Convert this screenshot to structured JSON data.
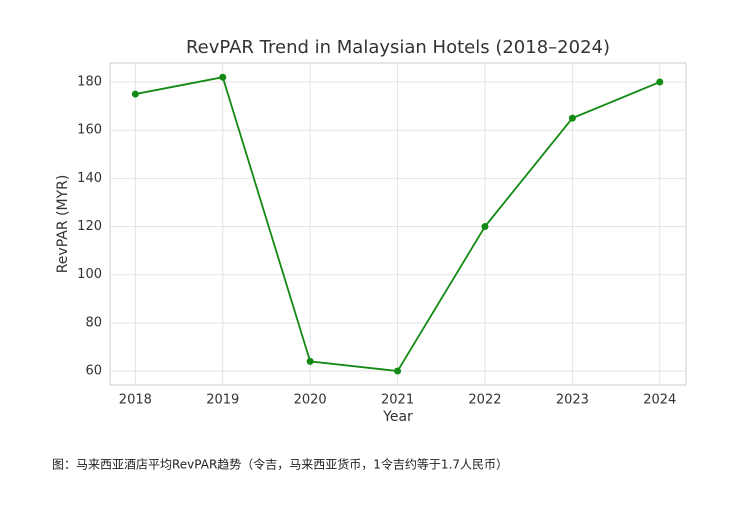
{
  "chart_data": {
    "type": "line",
    "title": "RevPAR Trend in Malaysian Hotels (2018–2024)",
    "x_label": "Year",
    "y_label": "RevPAR (MYR)",
    "x": [
      2018,
      2019,
      2020,
      2021,
      2022,
      2023,
      2024
    ],
    "series": [
      {
        "name": "RevPAR",
        "color": "#138a13",
        "values": [
          175,
          182,
          64,
          60,
          120,
          165,
          180
        ]
      }
    ],
    "xlim": [
      2017.71,
      2024.3
    ],
    "xticks": [
      2018,
      2019,
      2020,
      2021,
      2022,
      2023,
      2024
    ],
    "ylim": [
      54.2,
      187.9
    ],
    "yticks": [
      60,
      80,
      100,
      120,
      140,
      160,
      180
    ],
    "grid": true
  },
  "caption": "图：马来西亚酒店平均RevPAR趋势（令吉，马来西亚货币，1令吉约等于1.7人民币）"
}
